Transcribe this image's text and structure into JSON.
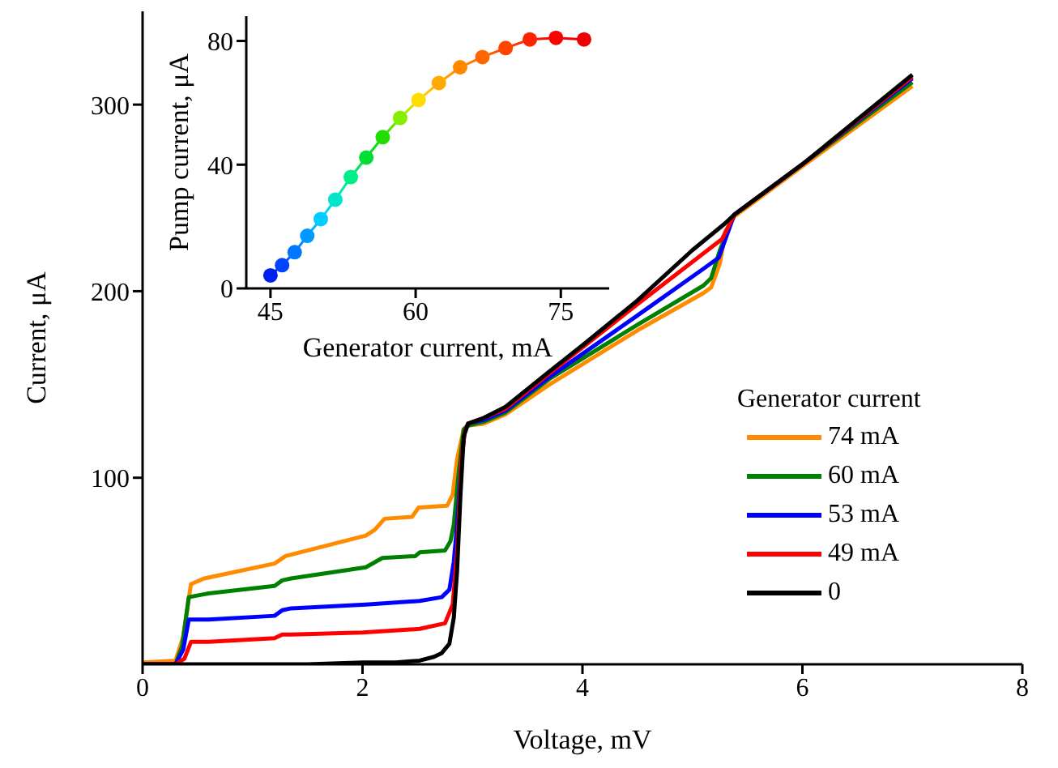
{
  "chart_data": [
    {
      "type": "line",
      "xlabel": "Voltage, mV",
      "ylabel": "Current, μA",
      "legend_title": "Generator current",
      "legend": "bottom right",
      "marker": "none",
      "line_style": "solid",
      "xlim": [
        0,
        8
      ],
      "xticks": [
        0,
        2,
        4,
        6,
        8
      ],
      "ylim": [
        0,
        350
      ],
      "yticks": [
        100,
        200,
        300
      ],
      "series": [
        {
          "name": "74 mA",
          "color": "#ff8c00",
          "x": [
            0,
            0.3,
            0.37,
            0.44,
            0.56,
            1.2,
            1.3,
            2.03,
            2.11,
            2.2,
            2.45,
            2.51,
            2.77,
            2.82,
            2.86,
            2.92,
            2.96,
            3.1,
            3.3,
            3.7,
            4.5,
            5.1,
            5.17,
            5.25,
            5.3,
            5.38,
            6.0,
            7.0
          ],
          "values": [
            1,
            2,
            15,
            43,
            46,
            54,
            58,
            69,
            72,
            78,
            79,
            84,
            85,
            91,
            110,
            126,
            128,
            129,
            134,
            150,
            179,
            199,
            202,
            215,
            232,
            240,
            267,
            310
          ]
        },
        {
          "name": "60 mA",
          "color": "#008000",
          "x": [
            0,
            0.3,
            0.36,
            0.42,
            0.6,
            1.2,
            1.27,
            1.35,
            2.03,
            2.18,
            2.48,
            2.52,
            2.75,
            2.8,
            2.83,
            2.87,
            2.92,
            2.96,
            3.1,
            3.3,
            3.7,
            4.5,
            5.1,
            5.17,
            5.25,
            5.38,
            6.0,
            7.0
          ],
          "values": [
            0,
            0,
            10,
            36,
            38,
            42,
            45,
            46,
            52,
            57,
            58,
            60,
            61,
            66,
            75,
            100,
            126,
            128,
            130,
            135,
            153,
            182,
            203,
            207,
            222,
            241,
            268,
            312
          ]
        },
        {
          "name": "53 mA",
          "color": "#0000ff",
          "x": [
            0,
            0.3,
            0.37,
            0.42,
            0.6,
            1.2,
            1.27,
            1.35,
            2.03,
            2.52,
            2.72,
            2.79,
            2.83,
            2.86,
            2.9,
            2.93,
            2.96,
            3.1,
            3.3,
            3.7,
            4.5,
            5.1,
            5.24,
            5.38,
            6.0,
            7.0
          ],
          "values": [
            0,
            0,
            8,
            24,
            24,
            26,
            29,
            30,
            32,
            34,
            36,
            40,
            55,
            75,
            110,
            125,
            129,
            131,
            136,
            154,
            187,
            212,
            218,
            241,
            268,
            314
          ]
        },
        {
          "name": "49 mA",
          "color": "#ff0000",
          "x": [
            0,
            0.3,
            0.38,
            0.44,
            0.6,
            1.2,
            1.27,
            1.35,
            2.0,
            2.52,
            2.75,
            2.82,
            2.86,
            2.9,
            2.93,
            2.96,
            3.1,
            3.3,
            3.7,
            4.5,
            5.27,
            5.38,
            6.0,
            7.0
          ],
          "values": [
            0,
            0,
            3,
            12,
            12,
            14,
            16,
            16,
            17,
            19,
            22,
            32,
            60,
            110,
            125,
            129,
            132,
            137,
            156,
            193,
            228,
            241,
            268,
            315
          ]
        },
        {
          "name": "0",
          "color": "#000000",
          "x": [
            0,
            0.5,
            1,
            1.5,
            2,
            2.3,
            2.52,
            2.65,
            2.72,
            2.79,
            2.83,
            2.86,
            2.89,
            2.92,
            2.96,
            3.1,
            3.3,
            3.7,
            4.0,
            4.5,
            5.0,
            5.29,
            5.38,
            6.0,
            7.0
          ],
          "values": [
            0,
            0,
            0,
            0,
            1,
            1,
            2,
            4,
            6,
            11,
            25,
            50,
            90,
            122,
            129,
            132,
            138,
            157,
            171,
            195,
            222,
            236,
            241,
            268,
            316
          ]
        }
      ]
    },
    {
      "type": "line",
      "xlabel": "Generator current, mA",
      "ylabel": "Pump current, μA",
      "marker": "circle",
      "line_style": "solid",
      "xlim": [
        42.5,
        80
      ],
      "xticks": [
        45,
        60,
        75
      ],
      "ylim": [
        0,
        88
      ],
      "yticks": [
        0,
        40,
        80
      ],
      "series": [
        {
          "x": [
            45.0,
            46.2,
            47.5,
            48.8,
            50.2,
            51.7,
            53.3,
            54.9,
            56.6,
            58.4,
            60.3,
            62.4,
            64.6,
            66.9,
            69.3,
            71.8,
            74.5,
            77.4
          ],
          "values": [
            4.2,
            7.5,
            11.7,
            17.0,
            22.4,
            28.7,
            36.0,
            42.3,
            48.9,
            55.1,
            60.9,
            66.4,
            71.5,
            74.8,
            77.7,
            80.5,
            81.0,
            80.5
          ],
          "colors": [
            "#0022ee",
            "#0044ff",
            "#0077ff",
            "#0099ff",
            "#00ccff",
            "#00e5cc",
            "#00ee88",
            "#00dd33",
            "#22dd00",
            "#88ee00",
            "#ffdd00",
            "#ffaa00",
            "#ff8800",
            "#ff6600",
            "#ff4400",
            "#ff2200",
            "#ff0000",
            "#ee0000"
          ]
        }
      ]
    }
  ]
}
